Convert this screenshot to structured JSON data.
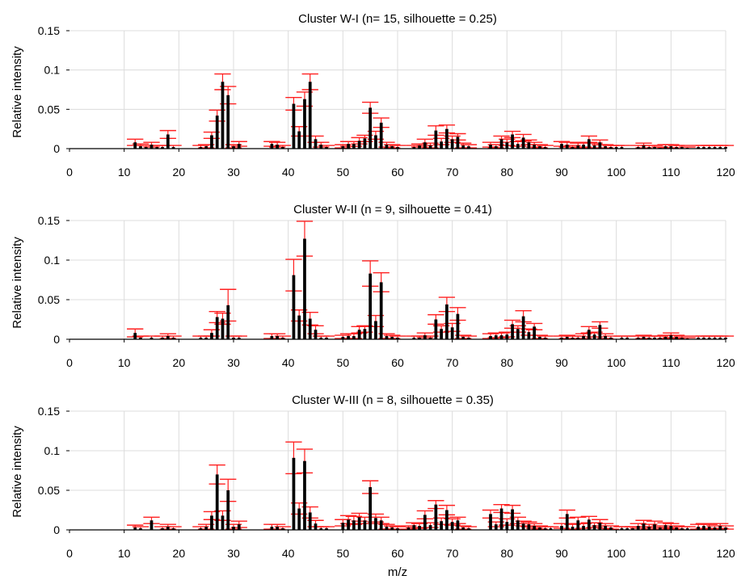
{
  "chart_data": [
    {
      "type": "bar",
      "title": "Cluster W-I (n= 15, silhouette = 0.25)",
      "xlabel": "",
      "ylabel": "Relative intensity",
      "xlim": [
        0,
        120
      ],
      "ylim": [
        0,
        0.15
      ],
      "xticks": [
        0,
        10,
        20,
        30,
        40,
        50,
        60,
        70,
        80,
        90,
        100,
        110,
        120
      ],
      "yticks": [
        0,
        0.05,
        0.1,
        0.15
      ],
      "ytick_labels": [
        "0",
        "0.05",
        "0.1",
        "0.15"
      ],
      "grid": true,
      "error_bars": true,
      "x": [
        12,
        13,
        14,
        15,
        16,
        17,
        18,
        19,
        24,
        25,
        26,
        27,
        28,
        29,
        30,
        31,
        37,
        38,
        39,
        41,
        42,
        43,
        44,
        45,
        46,
        47,
        50,
        51,
        52,
        53,
        54,
        55,
        56,
        57,
        58,
        59,
        60,
        63,
        64,
        65,
        66,
        67,
        68,
        69,
        70,
        71,
        72,
        73,
        77,
        78,
        79,
        80,
        81,
        82,
        83,
        84,
        85,
        86,
        87,
        90,
        91,
        92,
        93,
        94,
        95,
        96,
        97,
        98,
        99,
        100,
        101,
        104,
        105,
        106,
        107,
        108,
        109,
        110,
        111,
        112,
        113,
        115,
        116,
        117,
        118,
        119,
        120
      ],
      "values": [
        0.008,
        0.003,
        0.002,
        0.005,
        0.002,
        0.002,
        0.018,
        0.002,
        0.002,
        0.003,
        0.017,
        0.042,
        0.085,
        0.068,
        0.003,
        0.006,
        0.006,
        0.005,
        0.002,
        0.057,
        0.022,
        0.063,
        0.085,
        0.012,
        0.005,
        0.002,
        0.003,
        0.006,
        0.006,
        0.01,
        0.013,
        0.052,
        0.017,
        0.033,
        0.005,
        0.003,
        0.002,
        0.002,
        0.004,
        0.008,
        0.004,
        0.023,
        0.009,
        0.025,
        0.012,
        0.015,
        0.004,
        0.003,
        0.005,
        0.003,
        0.012,
        0.008,
        0.018,
        0.006,
        0.014,
        0.008,
        0.005,
        0.003,
        0.002,
        0.006,
        0.005,
        0.002,
        0.004,
        0.005,
        0.012,
        0.004,
        0.008,
        0.003,
        0.002,
        0.002,
        0.002,
        0.002,
        0.004,
        0.002,
        0.002,
        0.001,
        0.003,
        0.003,
        0.002,
        0.002,
        0.001,
        0.002,
        0.002,
        0.002,
        0.002,
        0.002,
        0.002
      ],
      "errors": [
        0.004,
        0.003,
        0.002,
        0.003,
        0.002,
        0.002,
        0.005,
        0.002,
        0.002,
        0.002,
        0.004,
        0.007,
        0.01,
        0.011,
        0.002,
        0.003,
        0.003,
        0.003,
        0.002,
        0.008,
        0.006,
        0.009,
        0.01,
        0.004,
        0.003,
        0.002,
        0.002,
        0.003,
        0.003,
        0.004,
        0.004,
        0.007,
        0.005,
        0.006,
        0.003,
        0.002,
        0.002,
        0.002,
        0.002,
        0.004,
        0.003,
        0.006,
        0.004,
        0.005,
        0.004,
        0.004,
        0.003,
        0.002,
        0.003,
        0.002,
        0.004,
        0.004,
        0.004,
        0.003,
        0.004,
        0.003,
        0.003,
        0.002,
        0.002,
        0.003,
        0.003,
        0.002,
        0.003,
        0.003,
        0.004,
        0.003,
        0.003,
        0.002,
        0.002,
        0.002,
        0.002,
        0.002,
        0.003,
        0.002,
        0.002,
        0.001,
        0.002,
        0.002,
        0.002,
        0.002,
        0.001,
        0.002,
        0.002,
        0.002,
        0.002,
        0.002,
        0.002
      ]
    },
    {
      "type": "bar",
      "title": "Cluster W-II (n = 9, silhouette = 0.41)",
      "xlabel": "",
      "ylabel": "Relative intensity",
      "xlim": [
        0,
        120
      ],
      "ylim": [
        0,
        0.15
      ],
      "xticks": [
        0,
        10,
        20,
        30,
        40,
        50,
        60,
        70,
        80,
        90,
        100,
        110,
        120
      ],
      "yticks": [
        0,
        0.05,
        0.1,
        0.15
      ],
      "ytick_labels": [
        "0",
        "0.05",
        "0.1",
        "0.15"
      ],
      "grid": true,
      "error_bars": true,
      "x": [
        12,
        13,
        15,
        17,
        18,
        19,
        24,
        25,
        26,
        27,
        28,
        29,
        30,
        31,
        37,
        38,
        39,
        41,
        42,
        43,
        44,
        45,
        46,
        47,
        50,
        51,
        52,
        53,
        54,
        55,
        56,
        57,
        58,
        59,
        60,
        63,
        64,
        65,
        66,
        67,
        68,
        69,
        70,
        71,
        72,
        73,
        77,
        78,
        79,
        80,
        81,
        82,
        83,
        84,
        85,
        86,
        87,
        90,
        91,
        92,
        93,
        94,
        95,
        96,
        97,
        98,
        99,
        101,
        102,
        104,
        105,
        106,
        107,
        108,
        109,
        110,
        111,
        112,
        113,
        115,
        116,
        117,
        118,
        119,
        120
      ],
      "values": [
        0.008,
        0.002,
        0.002,
        0.002,
        0.004,
        0.002,
        0.002,
        0.002,
        0.008,
        0.028,
        0.026,
        0.043,
        0.002,
        0.002,
        0.004,
        0.004,
        0.002,
        0.081,
        0.03,
        0.127,
        0.026,
        0.012,
        0.002,
        0.002,
        0.003,
        0.004,
        0.004,
        0.012,
        0.013,
        0.083,
        0.023,
        0.072,
        0.004,
        0.003,
        0.002,
        0.002,
        0.002,
        0.005,
        0.002,
        0.025,
        0.013,
        0.044,
        0.015,
        0.032,
        0.003,
        0.002,
        0.004,
        0.005,
        0.005,
        0.006,
        0.019,
        0.013,
        0.029,
        0.009,
        0.016,
        0.003,
        0.002,
        0.002,
        0.003,
        0.002,
        0.002,
        0.004,
        0.012,
        0.006,
        0.018,
        0.004,
        0.002,
        0.002,
        0.002,
        0.002,
        0.003,
        0.002,
        0.002,
        0.002,
        0.003,
        0.005,
        0.003,
        0.002,
        0.001,
        0.002,
        0.002,
        0.002,
        0.002,
        0.002,
        0.002
      ],
      "errors": [
        0.005,
        0.002,
        0.002,
        0.002,
        0.003,
        0.002,
        0.002,
        0.002,
        0.004,
        0.007,
        0.007,
        0.02,
        0.002,
        0.002,
        0.003,
        0.003,
        0.002,
        0.02,
        0.007,
        0.022,
        0.008,
        0.005,
        0.002,
        0.002,
        0.002,
        0.003,
        0.003,
        0.004,
        0.004,
        0.016,
        0.007,
        0.012,
        0.003,
        0.002,
        0.002,
        0.002,
        0.002,
        0.003,
        0.002,
        0.006,
        0.004,
        0.009,
        0.005,
        0.008,
        0.002,
        0.002,
        0.003,
        0.003,
        0.003,
        0.003,
        0.005,
        0.004,
        0.007,
        0.004,
        0.004,
        0.002,
        0.002,
        0.002,
        0.002,
        0.002,
        0.002,
        0.003,
        0.004,
        0.003,
        0.004,
        0.003,
        0.002,
        0.002,
        0.002,
        0.002,
        0.002,
        0.002,
        0.002,
        0.002,
        0.002,
        0.003,
        0.002,
        0.002,
        0.001,
        0.002,
        0.002,
        0.002,
        0.002,
        0.002,
        0.002
      ]
    },
    {
      "type": "bar",
      "title": "Cluster W-III (n = 8, silhouette = 0.35)",
      "xlabel": "m/z",
      "ylabel": "Relative intensity",
      "xlim": [
        0,
        120
      ],
      "ylim": [
        0,
        0.15
      ],
      "xticks": [
        0,
        10,
        20,
        30,
        40,
        50,
        60,
        70,
        80,
        90,
        100,
        110,
        120
      ],
      "yticks": [
        0,
        0.05,
        0.1,
        0.15
      ],
      "ytick_labels": [
        "0",
        "0.05",
        "0.1",
        "0.15"
      ],
      "grid": true,
      "error_bars": true,
      "x": [
        12,
        13,
        15,
        17,
        18,
        19,
        24,
        25,
        26,
        27,
        28,
        29,
        30,
        31,
        37,
        38,
        39,
        41,
        42,
        43,
        44,
        45,
        46,
        47,
        50,
        51,
        52,
        53,
        54,
        55,
        56,
        57,
        58,
        59,
        60,
        62,
        63,
        64,
        65,
        66,
        67,
        68,
        69,
        70,
        71,
        72,
        73,
        77,
        78,
        79,
        80,
        81,
        82,
        83,
        84,
        85,
        86,
        87,
        88,
        90,
        91,
        92,
        93,
        94,
        95,
        96,
        97,
        98,
        99,
        101,
        102,
        103,
        104,
        105,
        106,
        107,
        108,
        109,
        110,
        111,
        112,
        113,
        115,
        116,
        117,
        118,
        119,
        120
      ],
      "values": [
        0.003,
        0.002,
        0.012,
        0.002,
        0.004,
        0.002,
        0.002,
        0.004,
        0.018,
        0.07,
        0.018,
        0.05,
        0.004,
        0.007,
        0.004,
        0.004,
        0.002,
        0.091,
        0.027,
        0.087,
        0.022,
        0.008,
        0.002,
        0.002,
        0.009,
        0.013,
        0.012,
        0.016,
        0.012,
        0.054,
        0.015,
        0.012,
        0.004,
        0.003,
        0.002,
        0.003,
        0.006,
        0.005,
        0.019,
        0.006,
        0.032,
        0.011,
        0.025,
        0.01,
        0.012,
        0.003,
        0.002,
        0.02,
        0.007,
        0.027,
        0.01,
        0.026,
        0.012,
        0.008,
        0.007,
        0.005,
        0.003,
        0.002,
        0.002,
        0.005,
        0.02,
        0.004,
        0.012,
        0.005,
        0.013,
        0.006,
        0.009,
        0.005,
        0.003,
        0.002,
        0.002,
        0.002,
        0.005,
        0.008,
        0.004,
        0.007,
        0.003,
        0.006,
        0.005,
        0.003,
        0.002,
        0.002,
        0.004,
        0.005,
        0.004,
        0.003,
        0.005,
        0.003
      ],
      "errors": [
        0.003,
        0.002,
        0.004,
        0.002,
        0.003,
        0.002,
        0.002,
        0.003,
        0.005,
        0.012,
        0.006,
        0.014,
        0.003,
        0.004,
        0.003,
        0.003,
        0.002,
        0.02,
        0.007,
        0.015,
        0.007,
        0.004,
        0.002,
        0.002,
        0.004,
        0.005,
        0.005,
        0.005,
        0.004,
        0.008,
        0.005,
        0.004,
        0.003,
        0.002,
        0.002,
        0.002,
        0.003,
        0.003,
        0.005,
        0.003,
        0.005,
        0.004,
        0.006,
        0.004,
        0.004,
        0.002,
        0.002,
        0.005,
        0.003,
        0.005,
        0.004,
        0.005,
        0.004,
        0.003,
        0.003,
        0.003,
        0.002,
        0.002,
        0.002,
        0.003,
        0.005,
        0.003,
        0.004,
        0.003,
        0.004,
        0.003,
        0.004,
        0.003,
        0.002,
        0.002,
        0.002,
        0.002,
        0.003,
        0.004,
        0.003,
        0.004,
        0.002,
        0.003,
        0.003,
        0.002,
        0.002,
        0.002,
        0.003,
        0.003,
        0.003,
        0.002,
        0.003,
        0.002
      ]
    }
  ],
  "colors": {
    "bar": "#000000",
    "error_bar": "#ff2020",
    "grid": "#dcdcdc",
    "axis": "#000000"
  }
}
